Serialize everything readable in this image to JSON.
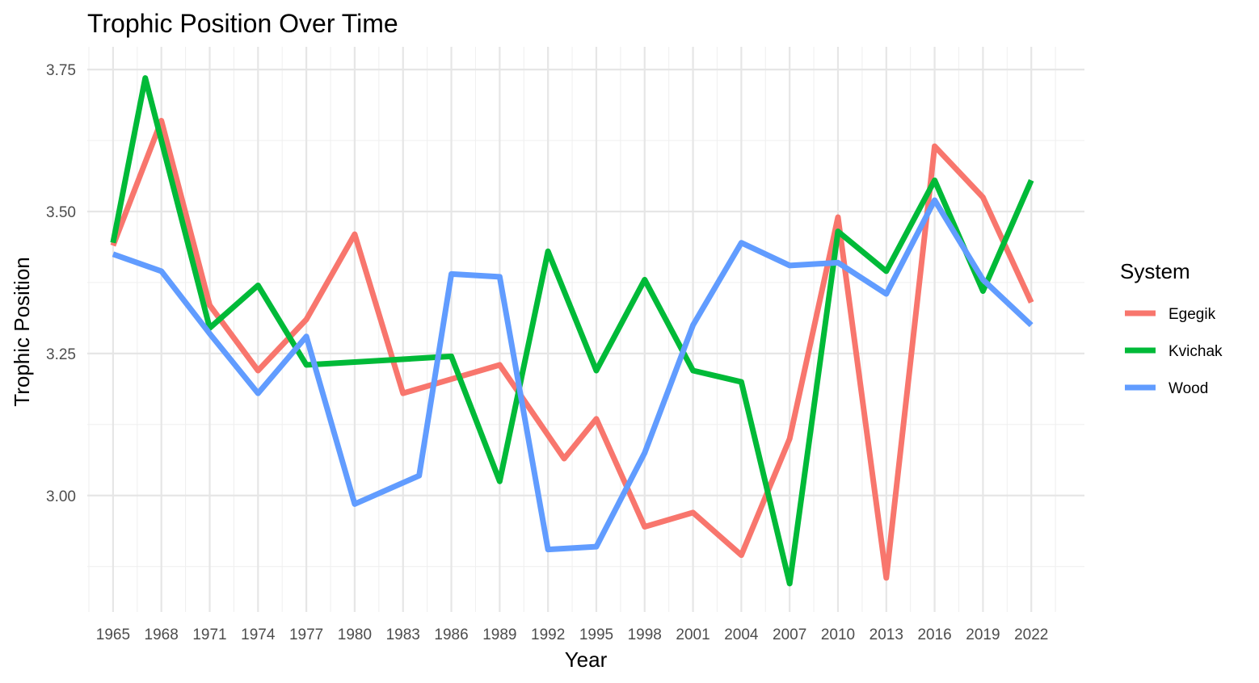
{
  "chart_data": {
    "type": "line",
    "title": "Trophic Position Over Time",
    "xlabel": "Year",
    "ylabel": "Trophic Position",
    "xlim": [
      1963.4,
      2025.3
    ],
    "ylim": [
      2.795,
      3.79
    ],
    "x_ticks": [
      1965,
      1968,
      1971,
      1974,
      1977,
      1980,
      1983,
      1986,
      1989,
      1992,
      1995,
      1998,
      2001,
      2004,
      2007,
      2010,
      2013,
      2016,
      2019,
      2022
    ],
    "y_ticks": [
      3.0,
      3.25,
      3.5,
      3.75
    ],
    "y_tick_labels": [
      "3.00",
      "3.25",
      "3.50",
      "3.75"
    ],
    "grid": true,
    "legend": {
      "title": "System",
      "position": "right"
    },
    "series": [
      {
        "name": "Egegik",
        "color": "#F8766D",
        "x": [
          1965,
          1968,
          1971,
          1974,
          1977,
          1980,
          1983,
          1986,
          1989,
          1993,
          1995,
          1998,
          2001,
          2004,
          2007,
          2010,
          2013,
          2016,
          2019,
          2022
        ],
        "values": [
          3.44,
          3.66,
          3.335,
          3.22,
          3.31,
          3.46,
          3.18,
          3.205,
          3.23,
          3.065,
          3.135,
          2.945,
          2.97,
          2.895,
          3.1,
          3.49,
          2.855,
          3.615,
          3.525,
          3.34
        ]
      },
      {
        "name": "Kvichak",
        "color": "#00BA38",
        "x": [
          1965,
          1967,
          1971,
          1974,
          1977,
          1986,
          1989,
          1992,
          1995,
          1998,
          2001,
          2004,
          2007,
          2010,
          2013,
          2016,
          2019,
          2022
        ],
        "values": [
          3.445,
          3.735,
          3.295,
          3.37,
          3.23,
          3.245,
          3.025,
          3.43,
          3.22,
          3.38,
          3.22,
          3.2,
          2.845,
          3.465,
          3.395,
          3.555,
          3.36,
          3.555
        ]
      },
      {
        "name": "Wood",
        "color": "#619CFF",
        "x": [
          1965,
          1968,
          1971,
          1974,
          1977,
          1980,
          1984,
          1986,
          1989,
          1992,
          1995,
          1998,
          2001,
          2004,
          2007,
          2010,
          2013,
          2016,
          2019,
          2022
        ],
        "values": [
          3.425,
          3.395,
          3.285,
          3.18,
          3.28,
          2.985,
          3.035,
          3.39,
          3.385,
          2.905,
          2.91,
          3.075,
          3.3,
          3.445,
          3.405,
          3.41,
          3.355,
          3.52,
          3.38,
          3.3
        ]
      }
    ]
  }
}
